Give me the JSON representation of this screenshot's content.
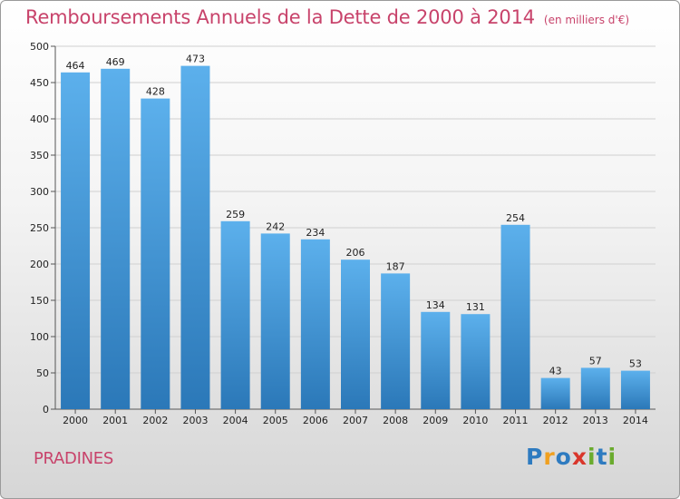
{
  "header": {
    "title": "Remboursements Annuels de la Dette de 2000 à 2014",
    "unit": "(en milliers d'€)"
  },
  "footer": {
    "city": "PRADINES",
    "logo_letters": [
      "P",
      "r",
      "o",
      "x",
      "i",
      "t",
      "i"
    ]
  },
  "colors": {
    "title": "#c8436b",
    "bar_top": "#5cb0ec",
    "bar_bottom": "#2b78b8",
    "logo": [
      "#2e7bc0",
      "#f0a020",
      "#2e7bc0",
      "#d9362b",
      "#6aab2e",
      "#2e7bc0",
      "#6aab2e"
    ]
  },
  "chart_data": {
    "type": "bar",
    "title": "Remboursements Annuels de la Dette de 2000 à 2014",
    "xlabel": "",
    "ylabel": "",
    "ylim": [
      0,
      500
    ],
    "yticks": [
      0,
      50,
      100,
      150,
      200,
      250,
      300,
      350,
      400,
      450,
      500
    ],
    "grid": true,
    "categories": [
      "2000",
      "2001",
      "2002",
      "2003",
      "2004",
      "2005",
      "2006",
      "2007",
      "2008",
      "2009",
      "2010",
      "2011",
      "2012",
      "2013",
      "2014"
    ],
    "values": [
      464,
      469,
      428,
      473,
      259,
      242,
      234,
      206,
      187,
      134,
      131,
      254,
      43,
      57,
      53
    ]
  }
}
